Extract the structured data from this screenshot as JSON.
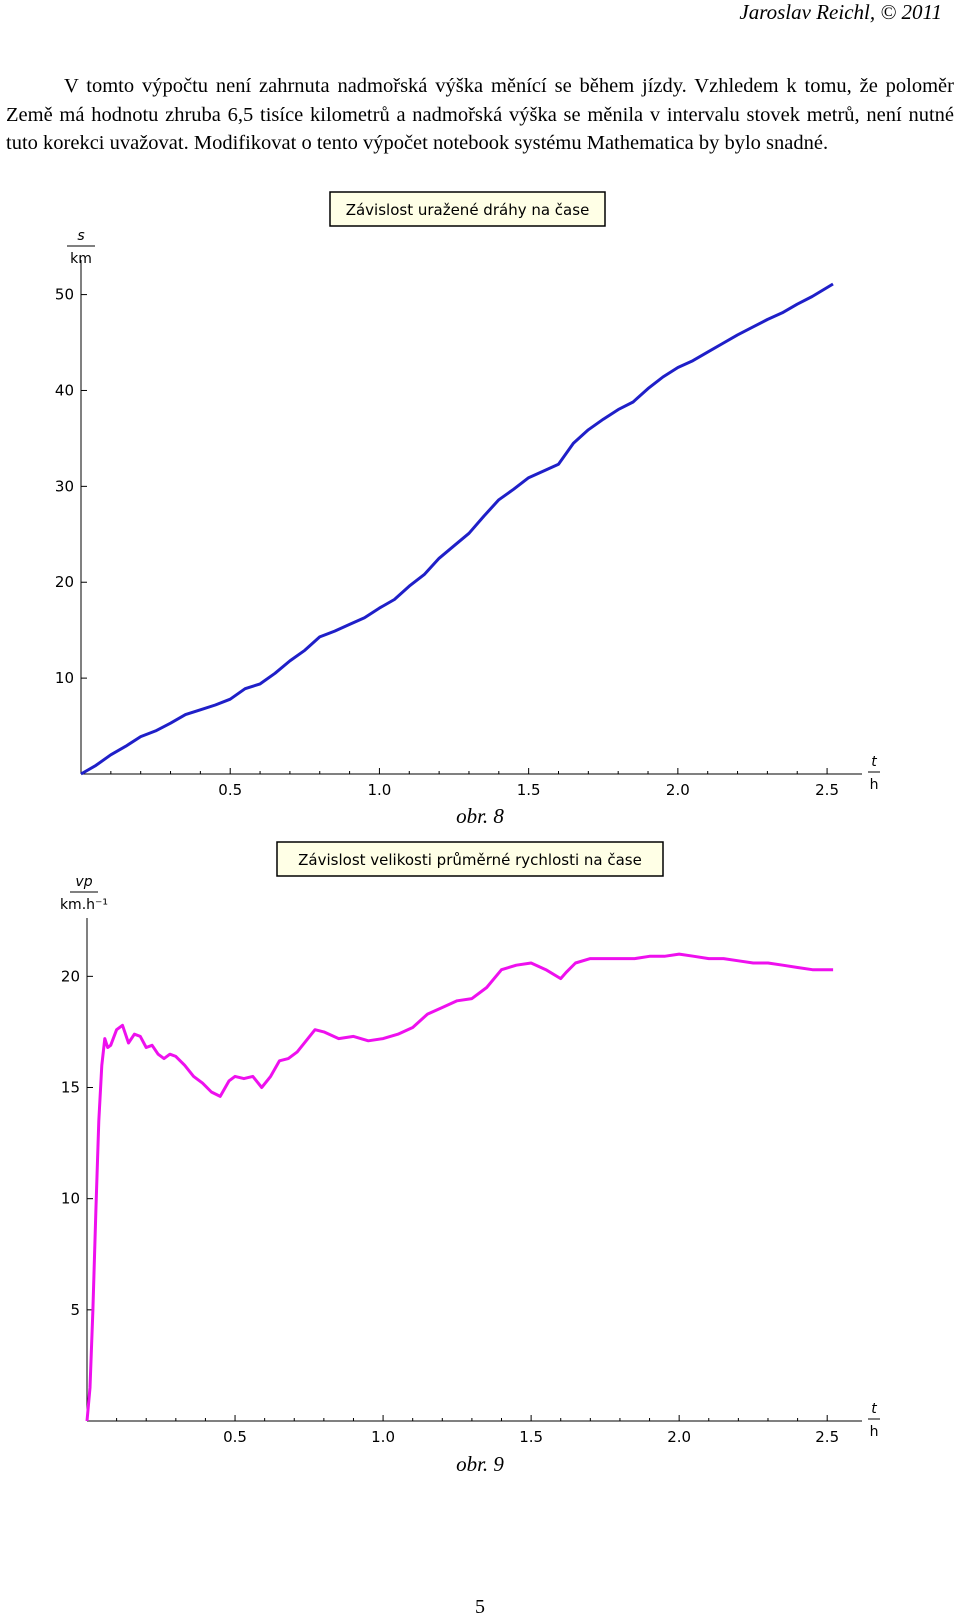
{
  "header": {
    "author": "Jaroslav Reichl, © 2011"
  },
  "body_text": "V tomto výpočtu není zahrnuta nadmořská výška měnící se během jízdy. Vzhledem k tomu, že poloměr Země má hodnotu zhruba 6,5 tisíce kilometrů a nadmořská výška se měnila v intervalu stovek metrů, není nutné tuto korekci uvažovat. Modifikovat o tento výpočet notebook systému Mathematica by bylo snadné.",
  "chart_data": [
    {
      "type": "line",
      "title": "Závislost uražené dráhy na čase",
      "ylabel_top": "s",
      "ylabel_bottom": "km",
      "xlabel_top": "t",
      "xlabel_bottom": "h",
      "xlim": [
        0,
        2.55
      ],
      "ylim": [
        0,
        51
      ],
      "xticks": [
        "0.5",
        "1.0",
        "1.5",
        "2.0",
        "2.5"
      ],
      "yticks": [
        "10",
        "20",
        "30",
        "40",
        "50"
      ],
      "color": "#1f1fc8",
      "x": [
        0.0,
        0.05,
        0.1,
        0.15,
        0.2,
        0.25,
        0.3,
        0.35,
        0.4,
        0.45,
        0.5,
        0.55,
        0.6,
        0.65,
        0.7,
        0.75,
        0.8,
        0.85,
        0.9,
        0.95,
        1.0,
        1.05,
        1.1,
        1.15,
        1.2,
        1.25,
        1.3,
        1.35,
        1.4,
        1.45,
        1.5,
        1.55,
        1.6,
        1.65,
        1.7,
        1.75,
        1.8,
        1.85,
        1.9,
        1.95,
        2.0,
        2.05,
        2.1,
        2.15,
        2.2,
        2.25,
        2.3,
        2.35,
        2.4,
        2.45,
        2.52
      ],
      "y": [
        0.0,
        0.9,
        2.0,
        2.9,
        3.9,
        4.5,
        5.3,
        6.2,
        6.7,
        7.2,
        7.8,
        8.9,
        9.4,
        10.5,
        11.8,
        12.9,
        14.3,
        14.9,
        15.6,
        16.3,
        17.3,
        18.2,
        19.6,
        20.8,
        22.5,
        23.8,
        25.1,
        26.9,
        28.6,
        29.7,
        30.9,
        31.6,
        32.3,
        34.5,
        35.9,
        37.0,
        38.0,
        38.8,
        40.2,
        41.4,
        42.4,
        43.1,
        44.0,
        44.9,
        45.8,
        46.6,
        47.4,
        48.1,
        49.0,
        49.8,
        51.1
      ]
    },
    {
      "type": "line",
      "title": "Závislost velikosti průměrné rychlosti na čase",
      "ylabel_top": "vp",
      "ylabel_bottom": "km.h⁻¹",
      "xlabel_top": "t",
      "xlabel_bottom": "h",
      "xlim": [
        0,
        2.55
      ],
      "ylim": [
        0,
        21.5
      ],
      "xticks": [
        "0.5",
        "1.0",
        "1.5",
        "2.0",
        "2.5"
      ],
      "yticks": [
        "5",
        "10",
        "15",
        "20"
      ],
      "color": "#ee10ee",
      "x": [
        0.0,
        0.01,
        0.02,
        0.03,
        0.04,
        0.05,
        0.06,
        0.07,
        0.08,
        0.1,
        0.12,
        0.14,
        0.16,
        0.18,
        0.2,
        0.22,
        0.24,
        0.26,
        0.28,
        0.3,
        0.33,
        0.36,
        0.39,
        0.42,
        0.45,
        0.48,
        0.5,
        0.53,
        0.56,
        0.59,
        0.62,
        0.65,
        0.68,
        0.71,
        0.74,
        0.77,
        0.8,
        0.85,
        0.9,
        0.95,
        1.0,
        1.05,
        1.1,
        1.15,
        1.2,
        1.25,
        1.3,
        1.35,
        1.4,
        1.45,
        1.5,
        1.55,
        1.6,
        1.62,
        1.65,
        1.7,
        1.75,
        1.8,
        1.85,
        1.9,
        1.95,
        2.0,
        2.05,
        2.1,
        2.15,
        2.2,
        2.25,
        2.3,
        2.35,
        2.4,
        2.45,
        2.52
      ],
      "y": [
        0.0,
        1.5,
        5.0,
        9.5,
        13.5,
        16.0,
        17.2,
        16.8,
        16.9,
        17.6,
        17.8,
        17.0,
        17.4,
        17.3,
        16.8,
        16.9,
        16.5,
        16.3,
        16.5,
        16.4,
        16.0,
        15.5,
        15.2,
        14.8,
        14.6,
        15.3,
        15.5,
        15.4,
        15.5,
        15.0,
        15.5,
        16.2,
        16.3,
        16.6,
        17.1,
        17.6,
        17.5,
        17.2,
        17.3,
        17.1,
        17.2,
        17.4,
        17.7,
        18.3,
        18.6,
        18.9,
        19.0,
        19.5,
        20.3,
        20.5,
        20.6,
        20.3,
        19.9,
        20.2,
        20.6,
        20.8,
        20.8,
        20.8,
        20.8,
        20.9,
        20.9,
        21.0,
        20.9,
        20.8,
        20.8,
        20.7,
        20.6,
        20.6,
        20.5,
        20.4,
        20.3,
        20.3
      ]
    }
  ],
  "captions": {
    "fig8": "obr. 8",
    "fig9": "obr. 9"
  },
  "page_number": "5"
}
